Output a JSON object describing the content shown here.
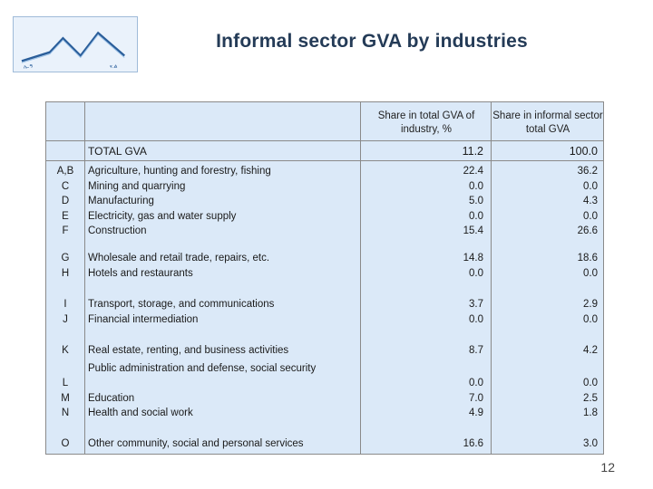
{
  "logo": {
    "left_text": "ኢ.ዓ",
    "right_text": "ና.ል"
  },
  "title": "Informal sector GVA by industries",
  "table": {
    "col_headers": {
      "share_industry": "Share in total GVA of industry, %",
      "share_informal": "Share in informal sector total GVA"
    },
    "total": {
      "label": "TOTAL GVA",
      "share_industry": "11.2",
      "share_informal": "100.0"
    },
    "groups": [
      {
        "codes": [
          "A,B",
          "C",
          "D",
          "E",
          "F"
        ],
        "labels": [
          "Agriculture, hunting and forestry, fishing",
          "Mining and quarrying",
          "Manufacturing",
          "Electricity, gas and water supply",
          "Construction"
        ],
        "share_industry": [
          "22.4",
          "0.0",
          "5.0",
          "0.0",
          "15.4"
        ],
        "share_informal": [
          "36.2",
          "0.0",
          "4.3",
          "0.0",
          "26.6"
        ]
      },
      {
        "codes": [
          "G",
          "H"
        ],
        "labels": [
          "Wholesale and retail trade, repairs, etc.",
          "Hotels and restaurants"
        ],
        "share_industry": [
          "14.8",
          "0.0"
        ],
        "share_informal": [
          "18.6",
          "0.0"
        ]
      },
      {
        "codes": [
          "I",
          "J"
        ],
        "labels": [
          "Transport, storage, and communications",
          "Financial intermediation"
        ],
        "share_industry": [
          "3.7",
          "0.0"
        ],
        "share_informal": [
          "2.9",
          "0.0"
        ]
      },
      {
        "codes": [
          "K",
          "L",
          "M",
          "N"
        ],
        "labels": [
          "Real estate, renting, and business activities",
          "Public administration and defense, social security",
          "Education",
          "Health and social work"
        ],
        "share_industry": [
          "8.7",
          "0.0",
          "7.0",
          "4.9"
        ],
        "share_informal": [
          "4.2",
          "0.0",
          "2.5",
          "1.8"
        ]
      },
      {
        "codes": [
          "O"
        ],
        "labels": [
          "Other community, social and personal services"
        ],
        "share_industry": [
          "16.6"
        ],
        "share_informal": [
          "3.0"
        ]
      }
    ]
  },
  "page_number": "12"
}
